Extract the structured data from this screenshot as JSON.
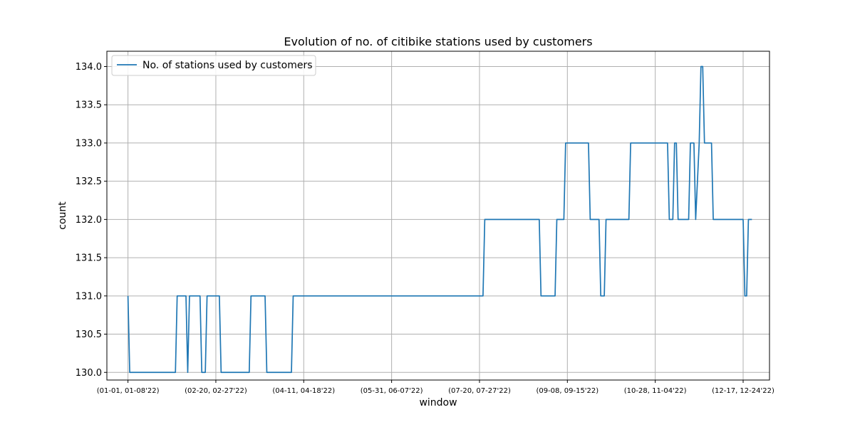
{
  "chart_data": {
    "type": "line",
    "title": "Evolution of no. of citibike stations used by customers",
    "xlabel": "window",
    "ylabel": "count",
    "grid": true,
    "legend_position": "top-left",
    "ylim": [
      129.9,
      134.2
    ],
    "yticks": [
      130.0,
      130.5,
      131.0,
      131.5,
      132.0,
      132.5,
      133.0,
      133.5,
      134.0
    ],
    "ytick_labels": [
      "130.0",
      "130.5",
      "131.0",
      "131.5",
      "132.0",
      "132.5",
      "133.0",
      "133.5",
      "134.0"
    ],
    "xlim": [
      -12,
      365
    ],
    "xticks": [
      0,
      50,
      100,
      150,
      200,
      250,
      300,
      350
    ],
    "xtick_labels": [
      "(01-01, 01-08'22)",
      "(02-20, 02-27'22)",
      "(04-11, 04-18'22)",
      "(05-31, 06-07'22)",
      "(07-20, 07-27'22)",
      "(09-08, 09-15'22)",
      "(10-28, 11-04'22)",
      "(12-17, 12-24'22)"
    ],
    "series": [
      {
        "name": "No. of stations used by customers",
        "color": "#1f77b4",
        "points": [
          [
            0,
            131
          ],
          [
            1,
            130
          ],
          [
            2,
            130
          ],
          [
            27,
            130
          ],
          [
            28,
            131
          ],
          [
            33,
            131
          ],
          [
            34,
            130
          ],
          [
            35,
            131
          ],
          [
            41,
            131
          ],
          [
            42,
            130
          ],
          [
            44,
            130
          ],
          [
            45,
            131
          ],
          [
            52,
            131
          ],
          [
            53,
            130
          ],
          [
            69,
            130
          ],
          [
            70,
            131
          ],
          [
            78,
            131
          ],
          [
            79,
            130
          ],
          [
            93,
            130
          ],
          [
            94,
            131
          ],
          [
            202,
            131
          ],
          [
            203,
            132
          ],
          [
            234,
            132
          ],
          [
            235,
            131
          ],
          [
            243,
            131
          ],
          [
            244,
            132
          ],
          [
            248,
            132
          ],
          [
            249,
            133
          ],
          [
            262,
            133
          ],
          [
            263,
            132
          ],
          [
            268,
            132
          ],
          [
            269,
            131
          ],
          [
            271,
            131
          ],
          [
            272,
            132
          ],
          [
            285,
            132
          ],
          [
            286,
            133
          ],
          [
            307,
            133
          ],
          [
            308,
            132
          ],
          [
            310,
            132
          ],
          [
            311,
            133
          ],
          [
            312,
            133
          ],
          [
            313,
            132
          ],
          [
            319,
            132
          ],
          [
            320,
            133
          ],
          [
            322,
            133
          ],
          [
            323,
            132
          ],
          [
            325,
            133
          ],
          [
            326,
            134
          ],
          [
            327,
            134
          ],
          [
            328,
            133
          ],
          [
            332,
            133
          ],
          [
            333,
            132
          ],
          [
            350,
            132
          ],
          [
            351,
            131
          ],
          [
            352,
            131
          ],
          [
            353,
            132
          ],
          [
            355,
            132
          ]
        ]
      }
    ]
  }
}
